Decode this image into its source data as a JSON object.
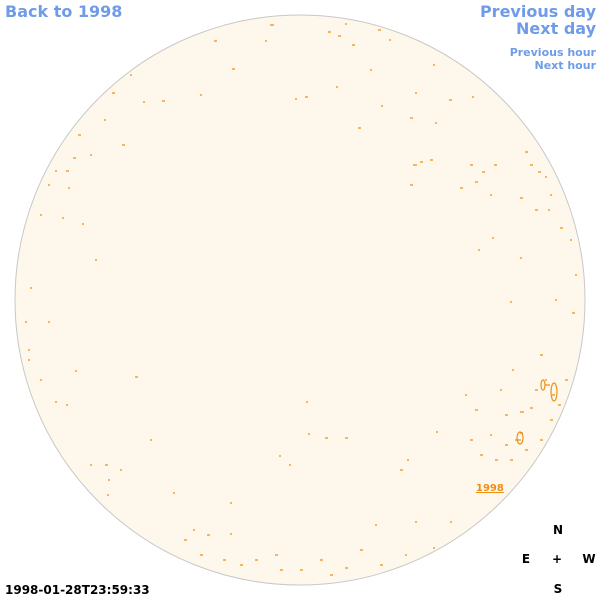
{
  "nav": {
    "back": "Back to 1998",
    "previous_day": "Previous day",
    "next_day": "Next day",
    "previous_hour": "Previous hour",
    "next_hour": "Next hour"
  },
  "image": {
    "year_link": "1998"
  },
  "compass": {
    "north": "N",
    "east": "E",
    "center": "+",
    "west": "W",
    "south": "S"
  },
  "timestamp": "1998-01-28T23:59:33"
}
